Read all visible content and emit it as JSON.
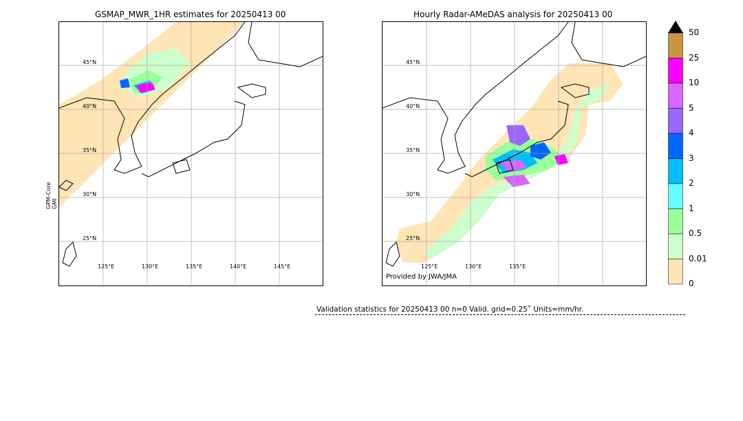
{
  "left_title": "GSMAP_MWR_1HR estimates for 20250413 00",
  "right_title": "Hourly Radar-AMeDAS analysis for 20250413 00",
  "left_side_label": [
    "GPM-Core",
    "GMI"
  ],
  "credit": "Provided by JWA/JMA",
  "lat_labels": [
    "45°N",
    "40°N",
    "35°N",
    "30°N",
    "25°N"
  ],
  "lon_labels": [
    "125°E",
    "130°E",
    "135°E",
    "140°E",
    "145°E"
  ],
  "colorbar": {
    "ticks": [
      "50",
      "25",
      "10",
      "5",
      "4",
      "3",
      "2",
      "1",
      "0.5",
      "0.01",
      "0"
    ],
    "colors": [
      "#c8963c",
      "#ff00ff",
      "#d966ff",
      "#9966ff",
      "#0066ff",
      "#00bfff",
      "#66ffff",
      "#99ff99",
      "#ccffcc",
      "#ffe4b5"
    ],
    "over_color": "#000000"
  },
  "stats": {
    "text": "Validation statistics for 20250413 00  n=0 Valid. grid=0.25˚ Units=mm/hr."
  }
}
